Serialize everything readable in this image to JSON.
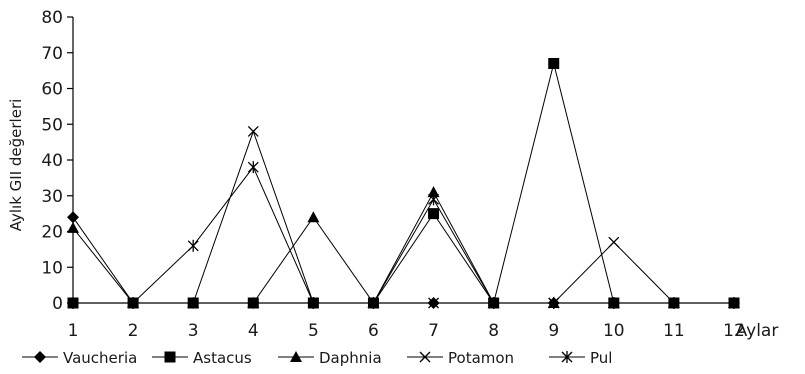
{
  "chart_data": {
    "type": "line",
    "xlabel": "Aylar",
    "ylabel": "Aylık GII değerleri",
    "x": [
      1,
      2,
      3,
      4,
      5,
      6,
      7,
      8,
      9,
      10,
      11,
      12
    ],
    "xlim": [
      1,
      12
    ],
    "ylim": [
      0,
      80
    ],
    "yticks": [
      0,
      10,
      20,
      30,
      40,
      50,
      60,
      70,
      80
    ],
    "grid": false,
    "legend_position": "bottom",
    "series": [
      {
        "name": "Vaucheria",
        "marker": "diamond",
        "values": [
          24,
          0,
          0,
          0,
          0,
          0,
          0,
          0,
          0,
          0,
          0,
          0
        ]
      },
      {
        "name": "Astacus",
        "marker": "square",
        "values": [
          0,
          0,
          0,
          0,
          0,
          0,
          25,
          0,
          67,
          0,
          0,
          0
        ]
      },
      {
        "name": "Daphnia",
        "marker": "triangle",
        "values": [
          21,
          0,
          0,
          0,
          24,
          0,
          31,
          0,
          0,
          0,
          0,
          0
        ]
      },
      {
        "name": "Potamon",
        "marker": "x",
        "values": [
          0,
          0,
          0,
          48,
          0,
          0,
          0,
          0,
          0,
          17,
          0,
          0
        ]
      },
      {
        "name": "Pul",
        "marker": "asterisk",
        "values": [
          0,
          0,
          16,
          38,
          0,
          0,
          29,
          0,
          0,
          0,
          0,
          0
        ]
      }
    ]
  }
}
